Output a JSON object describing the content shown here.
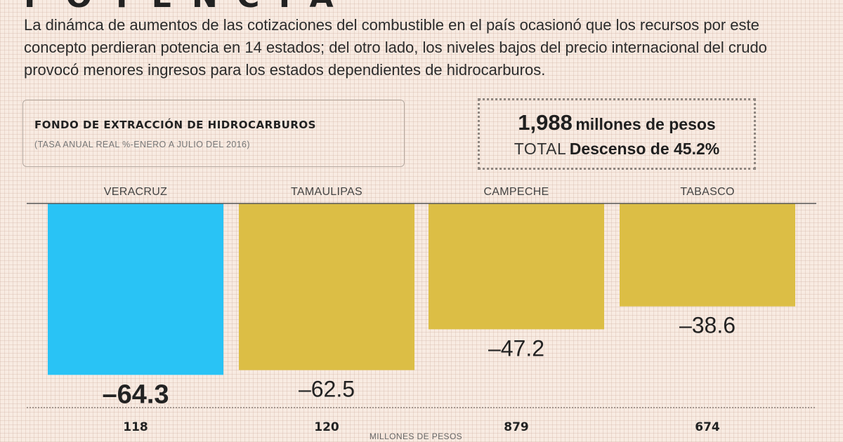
{
  "intro": "La dinámca de aumentos de las cotizaciones del combustible en el país ocasionó  que los recursos por este concepto perdieran potencia en 14 estados; del otro lado, los niveles bajos del precio internacional del crudo provocó menores ingresos para los estados dependientes de hidrocarburos.",
  "title_box": {
    "title": "FONDO DE EXTRACCIÓN DE HIDROCARBUROS",
    "subtitle": "(TASA ANUAL REAL %-ENERO A JULIO DEL 2016)"
  },
  "total_box": {
    "value": "1,988",
    "unit": "millones de pesos",
    "label": "TOTAL",
    "change": "Descenso de 45.2%"
  },
  "colors": {
    "highlight": "#29c3f5",
    "bar": "#dcbe45",
    "axis": "#555555",
    "background": "#f8ebe2"
  },
  "chart_data": {
    "type": "bar",
    "title": "FONDO DE EXTRACCIÓN DE HIDROCARBUROS",
    "subtitle": "(TASA ANUAL REAL %-ENERO A JULIO DEL 2016)",
    "categories": [
      "VERACRUZ",
      "TAMAULIPAS",
      "CAMPECHE",
      "TABASCO"
    ],
    "values": [
      -64.3,
      -62.5,
      -47.2,
      -38.6
    ],
    "value_labels": [
      "–64.3",
      "–62.5",
      "–47.2",
      "–38.6"
    ],
    "amounts": [
      "118",
      "120",
      "879",
      "674"
    ],
    "amounts_unit": "MILLONES DE PESOS",
    "highlight_index": 0,
    "ylim": [
      -80,
      0
    ],
    "orientation": "bars hang downward from a zero baseline"
  }
}
